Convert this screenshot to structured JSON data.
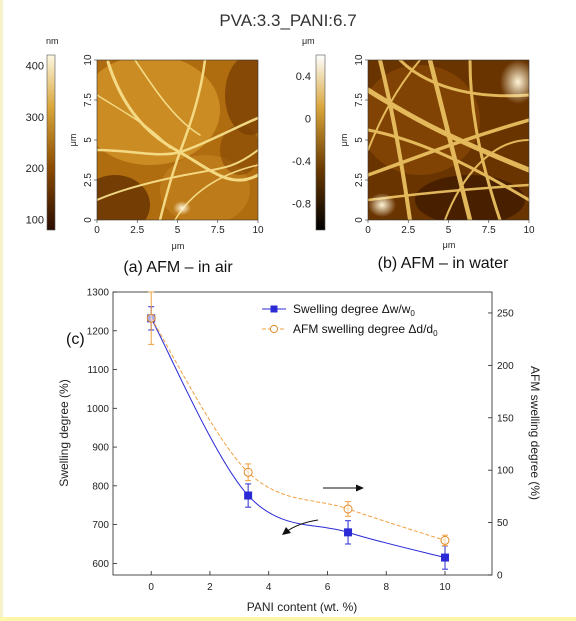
{
  "figure": {
    "title": "PVA:3.3_PANI:6.7"
  },
  "panel_a": {
    "caption": "(a) AFM – in air",
    "colorbar_unit": "nm",
    "colorbar_ticks": [
      100,
      200,
      300,
      400
    ],
    "colorbar_range": [
      80,
      420
    ],
    "xlabel": "μm",
    "ylabel": "μm",
    "x_ticks": [
      "0",
      "2.5",
      "5",
      "7.5",
      "10"
    ],
    "y_ticks": [
      "0",
      "2.5",
      "5",
      "7.5",
      "10"
    ]
  },
  "panel_b": {
    "caption": "(b) AFM – in water",
    "colorbar_unit": "μm",
    "colorbar_ticks": [
      "-0.8",
      "-0.4",
      "0",
      "0.4"
    ],
    "colorbar_range": [
      -1.05,
      0.6
    ],
    "xlabel": "μm",
    "ylabel": "μm",
    "x_ticks": [
      "0",
      "2.5",
      "5",
      "7.5",
      "10"
    ],
    "y_ticks": [
      "0",
      "2.5",
      "5",
      "7.5",
      "10"
    ]
  },
  "panel_c": {
    "label": "(c)"
  },
  "chart_data": {
    "type": "line",
    "title": "",
    "xlabel": "PANI content (wt. %)",
    "ylabel": "Swelling degree (%)",
    "y2label": "AFM swelling degree (%)",
    "xlim": [
      -1.3,
      11.6
    ],
    "ylim": [
      570,
      1300
    ],
    "y2lim": [
      0,
      270
    ],
    "x_ticks": [
      0,
      2,
      4,
      6,
      8,
      10
    ],
    "y_ticks": [
      600,
      700,
      800,
      900,
      1000,
      1100,
      1200,
      1300
    ],
    "y2_ticks": [
      0,
      50,
      100,
      150,
      200,
      250
    ],
    "legend": [
      {
        "text": "Swelling degree Δw/w",
        "sub": "0"
      },
      {
        "text": "AFM swelling degree Δd/d",
        "sub": "0"
      }
    ],
    "series": [
      {
        "name": "Swelling degree Δw/w0",
        "axis": "left",
        "color": "#2b2bd6",
        "marker": "square",
        "x": [
          0,
          3.3,
          6.7,
          10
        ],
        "y": [
          1232,
          775,
          680,
          615
        ],
        "err": [
          30,
          30,
          30,
          30
        ]
      },
      {
        "name": "AFM swelling degree Δd/d0",
        "axis": "right",
        "color": "#f0a040",
        "marker": "circle",
        "x": [
          0,
          3.3,
          6.7,
          10
        ],
        "y": [
          245,
          98,
          63,
          33
        ],
        "err": [
          25,
          8,
          7,
          5
        ]
      }
    ]
  }
}
